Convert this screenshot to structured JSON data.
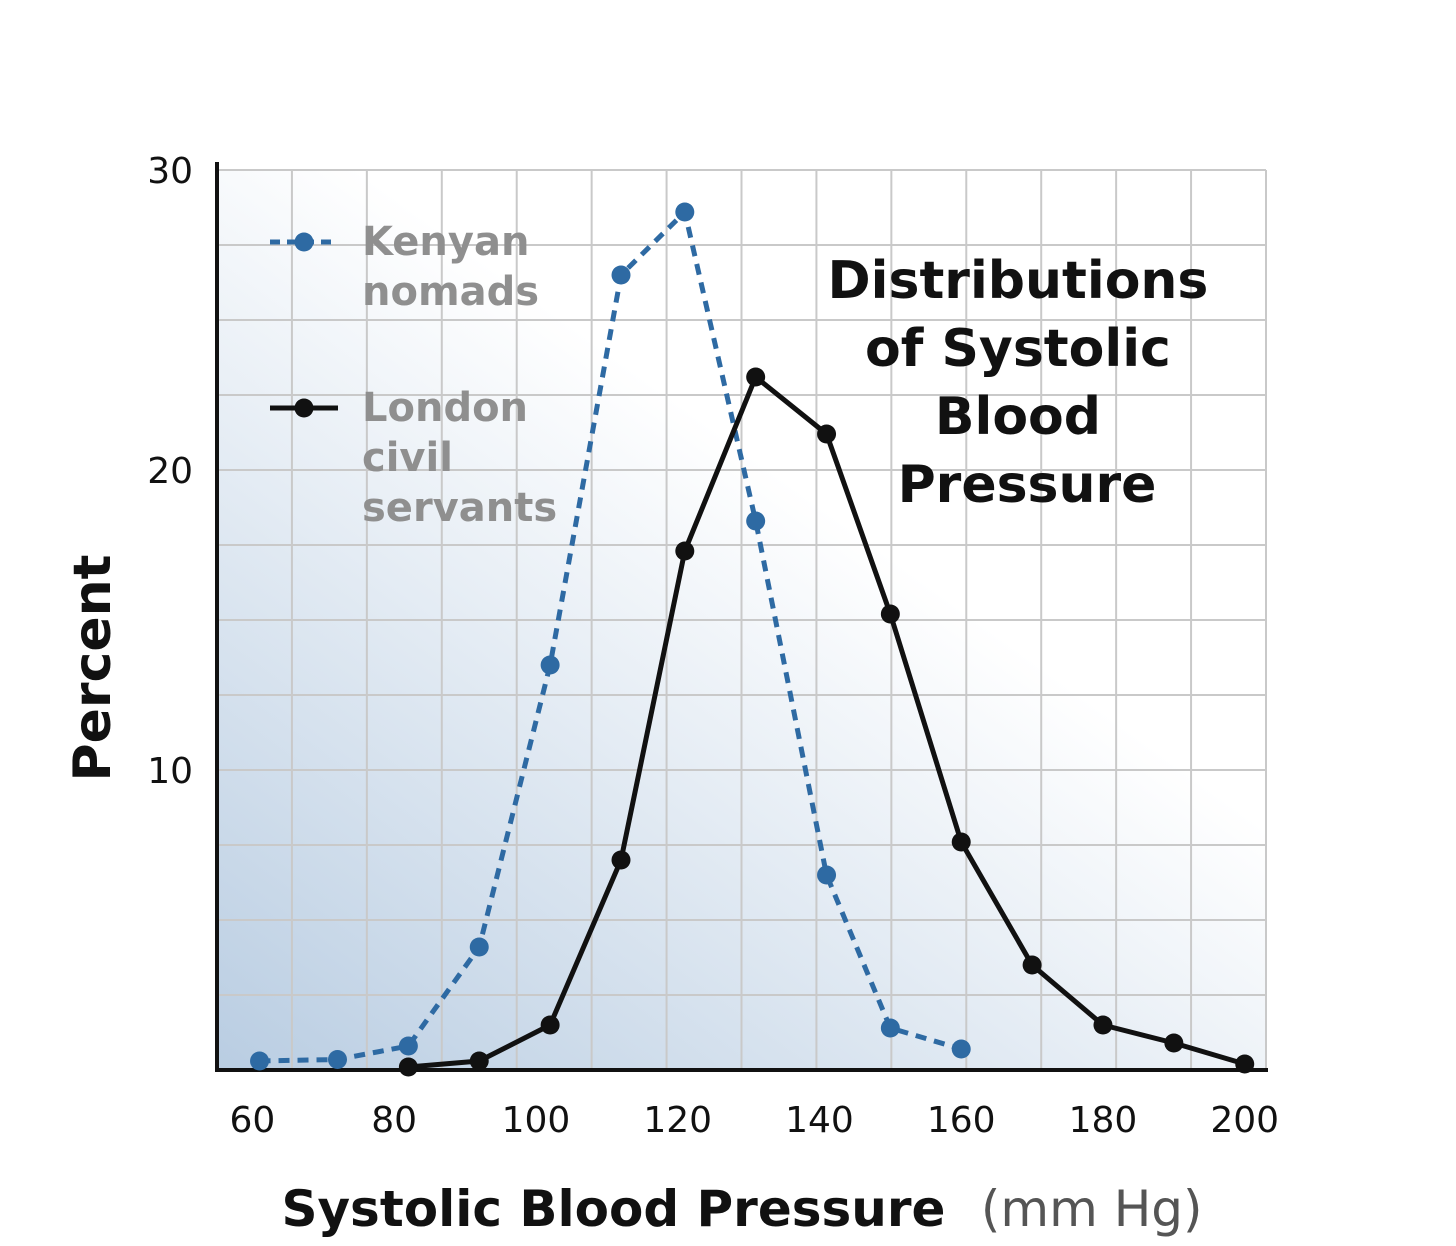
{
  "chart_data": {
    "type": "line",
    "title_lines": [
      "Distributions",
      "of Systolic",
      "Blood",
      "Pressure"
    ],
    "xlabel": "Systolic Blood Pressure",
    "xlabel_unit": "(mm Hg)",
    "ylabel": "Percent",
    "xlim": [
      55,
      203
    ],
    "ylim": [
      0,
      30
    ],
    "x_ticks": [
      60,
      80,
      100,
      120,
      140,
      160,
      180,
      200
    ],
    "y_ticks": [
      10,
      20,
      30
    ],
    "grid": true,
    "legend_position": "top-left",
    "series": [
      {
        "name": "Kenyan nomads",
        "legend_lines": [
          "Kenyan",
          "nomads"
        ],
        "color": "#2e6aa3",
        "style": "dashed",
        "x": [
          61,
          72,
          82,
          92,
          102,
          112,
          121,
          131,
          141,
          150,
          160
        ],
        "y": [
          0.3,
          0.35,
          0.8,
          4.1,
          13.5,
          26.5,
          28.6,
          18.3,
          6.5,
          1.4,
          0.7
        ]
      },
      {
        "name": "London civil servants",
        "legend_lines": [
          "London",
          "civil",
          "servants"
        ],
        "color": "#111111",
        "style": "solid",
        "x": [
          82,
          92,
          102,
          112,
          121,
          131,
          141,
          150,
          160,
          170,
          180,
          190,
          200
        ],
        "y": [
          0.1,
          0.3,
          1.5,
          7.0,
          17.3,
          23.1,
          21.2,
          15.2,
          7.6,
          3.5,
          1.5,
          0.9,
          0.2
        ]
      }
    ]
  }
}
